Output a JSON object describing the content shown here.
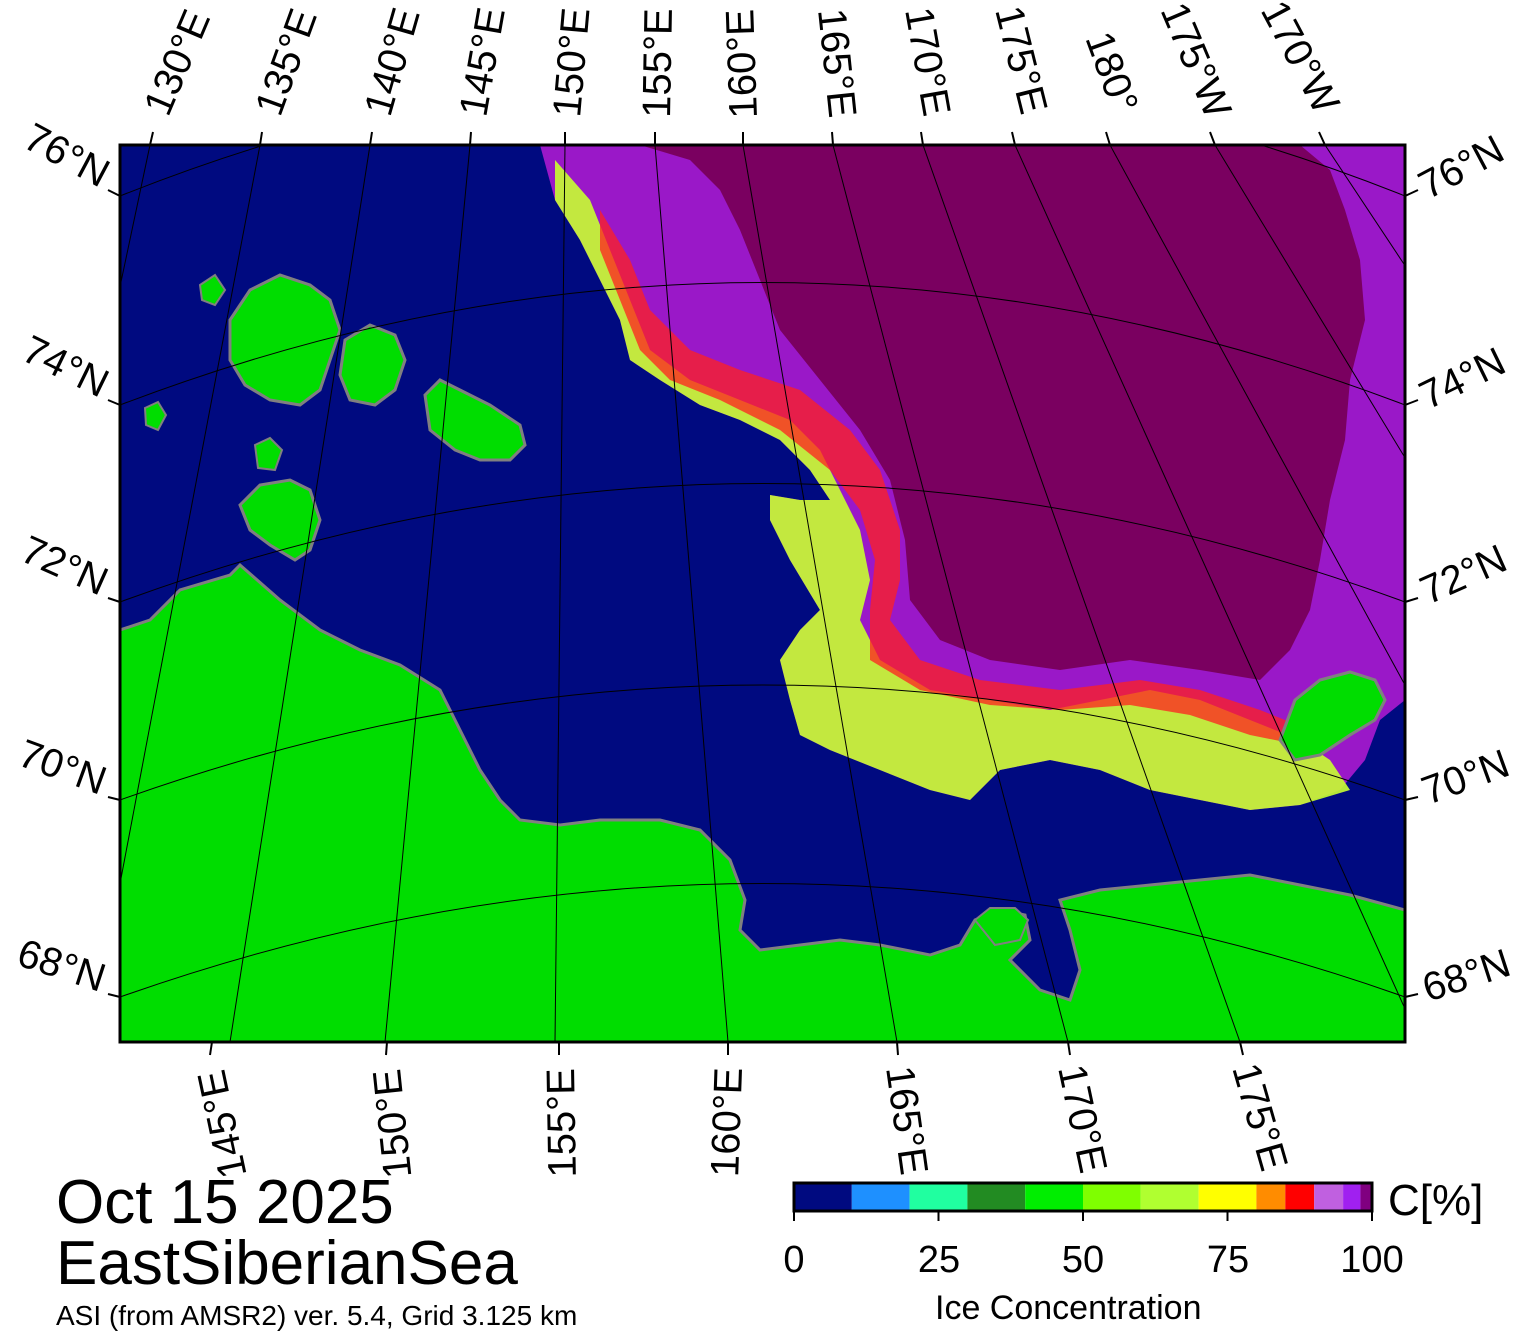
{
  "header": {
    "date": "Oct 15 2025",
    "region": "EastSiberianSea",
    "source": "ASI (from AMSR2) ver. 5.4,  Grid 3.125 km"
  },
  "latitude_labels": [
    "76°N",
    "74°N",
    "72°N",
    "70°N",
    "68°N"
  ],
  "top_longitude_labels": [
    "130°E",
    "135°E",
    "140°E",
    "145°E",
    "150°E",
    "155°E",
    "160°E",
    "165°E",
    "170°E",
    "175°E",
    "180°",
    "175°W",
    "170°W"
  ],
  "bottom_longitude_labels": [
    "145°E",
    "150°E",
    "155°E",
    "160°E",
    "165°E",
    "170°E",
    "175°E"
  ],
  "colorbar": {
    "title": "Ice Concentration",
    "unit": "C[%]",
    "ticks": [
      "0",
      "25",
      "50",
      "75",
      "100"
    ],
    "range": [
      0,
      100
    ],
    "colors": [
      "#000a80",
      "#1e90ff",
      "#20ffa0",
      "#228b22",
      "#00ee00",
      "#7fff00",
      "#b0ff30",
      "#ffff00",
      "#ff8c00",
      "#ff0000",
      "#c060e0",
      "#a020f0",
      "#800080"
    ]
  },
  "legend_colors": {
    "open_water": "#000a80",
    "land": "#00dd00",
    "consolidated_ice": "#7a0060",
    "coast": "#808080"
  }
}
